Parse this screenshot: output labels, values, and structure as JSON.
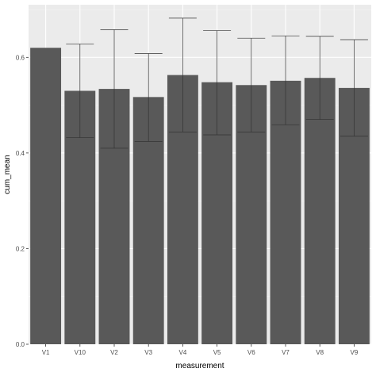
{
  "chart_data": {
    "type": "bar",
    "xlabel": "measurement",
    "ylabel": "cum_mean",
    "categories": [
      "V1",
      "V10",
      "V2",
      "V3",
      "V4",
      "V5",
      "V6",
      "V7",
      "V8",
      "V9"
    ],
    "values": [
      0.62,
      0.53,
      0.534,
      0.517,
      0.563,
      0.548,
      0.542,
      0.551,
      0.557,
      0.536
    ],
    "error_lower": [
      null,
      0.432,
      0.41,
      0.424,
      0.444,
      0.438,
      0.444,
      0.459,
      0.47,
      0.435
    ],
    "error_upper": [
      null,
      0.628,
      0.658,
      0.608,
      0.682,
      0.656,
      0.64,
      0.645,
      0.644,
      0.637
    ],
    "ylim": [
      0,
      0.71
    ],
    "yticks": [
      0.0,
      0.2,
      0.4,
      0.6
    ],
    "ytick_labels": [
      "0.0",
      "0.2",
      "0.4",
      "0.6"
    ],
    "grid": true,
    "colors": {
      "panel_background": "#ebebeb",
      "grid_major": "#ffffff",
      "grid_minor": "#f5f5f5",
      "bar_fill": "#595959",
      "errorbar": "#333333",
      "tick_text": "#4d4d4d"
    }
  }
}
